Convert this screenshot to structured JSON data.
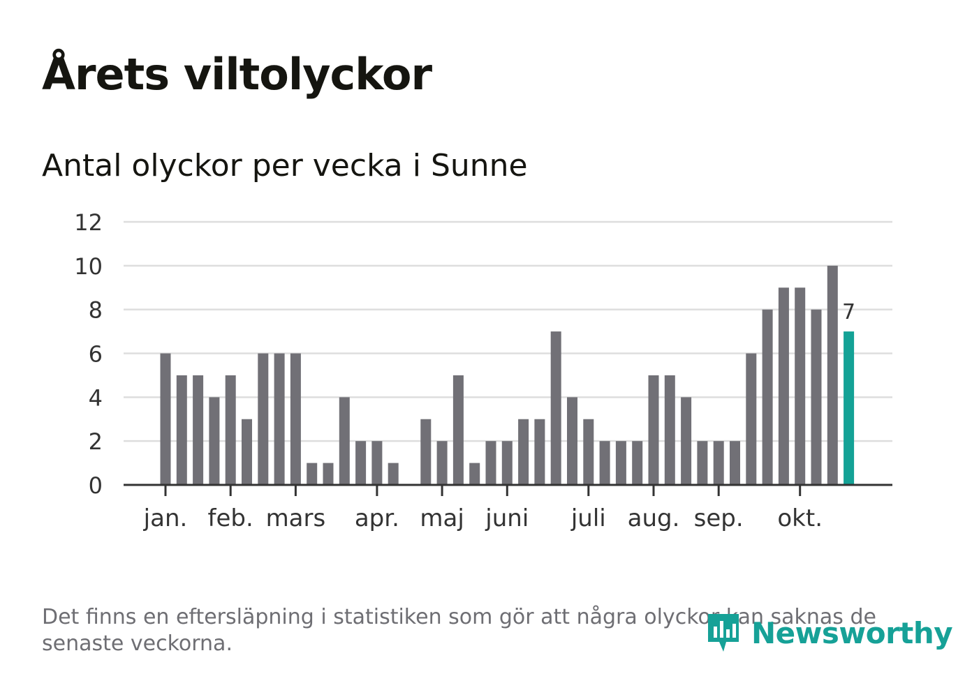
{
  "title": "Årets viltolyckor",
  "subtitle": "Antal olyckor per vecka i Sunne",
  "footnote": "Det finns en eftersläpning i statistiken som gör att några olyckor kan saknas de senaste veckorna.",
  "logo": {
    "text": "Newsworthy",
    "icon": "newsworthy-bar-chart-icon"
  },
  "colors": {
    "bar": "#717076",
    "highlight": "#14a296",
    "grid": "#dddddd",
    "axis": "#333333",
    "brand": "#16a197"
  },
  "chart_data": {
    "type": "bar",
    "title": "Antal olyckor per vecka i Sunne",
    "xlabel": "",
    "ylabel": "",
    "ylim": [
      0,
      12
    ],
    "yticks": [
      0,
      2,
      4,
      6,
      8,
      10,
      12
    ],
    "grid": true,
    "weeks": [
      1,
      2,
      3,
      4,
      5,
      6,
      7,
      8,
      9,
      10,
      11,
      12,
      13,
      14,
      15,
      16,
      17,
      18,
      19,
      20,
      21,
      22,
      23,
      24,
      25,
      26,
      27,
      28,
      29,
      30,
      31,
      32,
      33,
      34,
      35,
      36,
      37,
      38,
      39,
      40,
      41,
      42,
      43
    ],
    "values": [
      6,
      5,
      5,
      4,
      5,
      3,
      6,
      6,
      6,
      1,
      1,
      4,
      2,
      2,
      1,
      0,
      3,
      2,
      5,
      1,
      2,
      2,
      3,
      3,
      7,
      4,
      3,
      2,
      2,
      2,
      5,
      5,
      4,
      2,
      2,
      2,
      6,
      8,
      9,
      9,
      8,
      10,
      7
    ],
    "highlight_index": 42,
    "highlight_label": "7",
    "month_ticks": [
      {
        "label": "jan.",
        "week": 1
      },
      {
        "label": "feb.",
        "week": 5
      },
      {
        "label": "mars",
        "week": 9
      },
      {
        "label": "apr.",
        "week": 14
      },
      {
        "label": "maj",
        "week": 18
      },
      {
        "label": "juni",
        "week": 22
      },
      {
        "label": "juli",
        "week": 27
      },
      {
        "label": "aug.",
        "week": 31
      },
      {
        "label": "sep.",
        "week": 35
      },
      {
        "label": "okt.",
        "week": 40
      }
    ]
  }
}
